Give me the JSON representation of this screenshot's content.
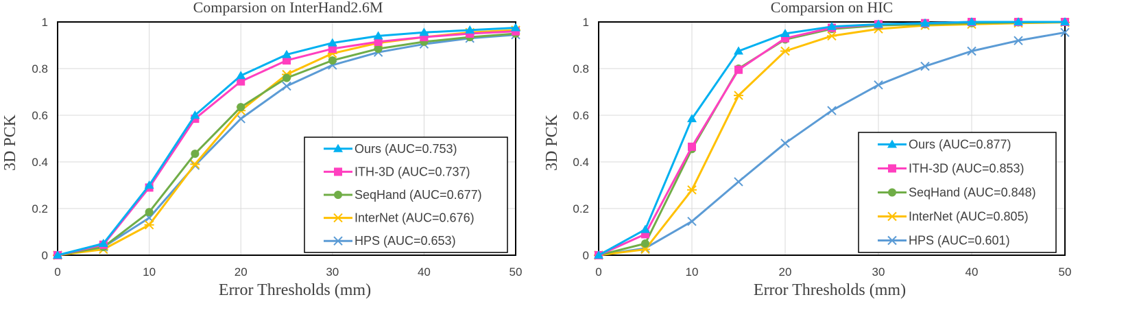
{
  "chart_data": [
    {
      "type": "line",
      "title": "Comparsion on InterHand2.6M",
      "xlabel": "Error Thresholds (mm)",
      "ylabel": "3D PCK",
      "xlim": [
        0,
        50
      ],
      "ylim": [
        0,
        1
      ],
      "x": [
        0,
        5,
        10,
        15,
        20,
        25,
        30,
        35,
        40,
        45,
        50
      ],
      "xticks": [
        "0",
        "10",
        "20",
        "30",
        "40",
        "50"
      ],
      "yticks": [
        "0",
        "0.2",
        "0.4",
        "0.6",
        "0.8",
        "1"
      ],
      "grid": true,
      "legend_position": "bottom-right",
      "series": [
        {
          "name": "Ours (AUC=0.753)",
          "marker": "triangle",
          "color": "#00B0F0",
          "values": [
            0.0,
            0.05,
            0.3,
            0.6,
            0.77,
            0.86,
            0.91,
            0.94,
            0.955,
            0.965,
            0.975
          ]
        },
        {
          "name": "ITH-3D (AUC=0.737)",
          "marker": "square",
          "color": "#FF3FBF",
          "values": [
            0.0,
            0.045,
            0.29,
            0.585,
            0.745,
            0.835,
            0.885,
            0.915,
            0.935,
            0.95,
            0.96
          ]
        },
        {
          "name": "SeqHand (AUC=0.677)",
          "marker": "circle",
          "color": "#70AD47",
          "values": [
            0.0,
            0.035,
            0.185,
            0.435,
            0.635,
            0.76,
            0.835,
            0.885,
            0.915,
            0.935,
            0.95
          ]
        },
        {
          "name": "InterNet  (AUC=0.676)",
          "marker": "asterisk",
          "color": "#FFC000",
          "values": [
            0.0,
            0.025,
            0.13,
            0.39,
            0.62,
            0.775,
            0.865,
            0.91,
            0.935,
            0.955,
            0.965
          ]
        },
        {
          "name": "HPS (AUC=0.653)",
          "marker": "x",
          "color": "#5B9BD5",
          "values": [
            0.0,
            0.035,
            0.16,
            0.385,
            0.585,
            0.725,
            0.815,
            0.87,
            0.905,
            0.93,
            0.945
          ]
        }
      ]
    },
    {
      "type": "line",
      "title": "Comparsion on HIC",
      "xlabel": "Error Thresholds (mm)",
      "ylabel": "3D PCK",
      "xlim": [
        0,
        50
      ],
      "ylim": [
        0,
        1
      ],
      "x": [
        0,
        5,
        10,
        15,
        20,
        25,
        30,
        35,
        40,
        45,
        50
      ],
      "xticks": [
        "0",
        "10",
        "20",
        "30",
        "40",
        "50"
      ],
      "yticks": [
        "0",
        "0.2",
        "0.4",
        "0.6",
        "0.8",
        "1"
      ],
      "grid": true,
      "legend_position": "bottom-right",
      "series": [
        {
          "name": "Ours (AUC=0.877)",
          "marker": "triangle",
          "color": "#00B0F0",
          "values": [
            0.0,
            0.11,
            0.585,
            0.875,
            0.95,
            0.98,
            0.99,
            0.995,
            1.0,
            1.0,
            1.0
          ]
        },
        {
          "name": "ITH-3D (AUC=0.853)",
          "marker": "square",
          "color": "#FF3FBF",
          "values": [
            0.0,
            0.09,
            0.465,
            0.795,
            0.93,
            0.975,
            0.99,
            0.995,
            1.0,
            1.0,
            1.0
          ]
        },
        {
          "name": "SeqHand (AUC=0.848)",
          "marker": "circle",
          "color": "#70AD47",
          "values": [
            0.0,
            0.05,
            0.455,
            0.8,
            0.925,
            0.97,
            0.985,
            0.99,
            0.995,
            0.998,
            1.0
          ]
        },
        {
          "name": "InterNet (AUC=0.805)",
          "marker": "asterisk",
          "color": "#FFC000",
          "values": [
            0.0,
            0.025,
            0.28,
            0.685,
            0.875,
            0.94,
            0.97,
            0.985,
            0.99,
            0.995,
            0.998
          ]
        },
        {
          "name": "HPS (AUC=0.601)",
          "marker": "x",
          "color": "#5B9BD5",
          "values": [
            0.0,
            0.03,
            0.145,
            0.315,
            0.48,
            0.62,
            0.73,
            0.81,
            0.875,
            0.92,
            0.955
          ]
        }
      ]
    }
  ]
}
